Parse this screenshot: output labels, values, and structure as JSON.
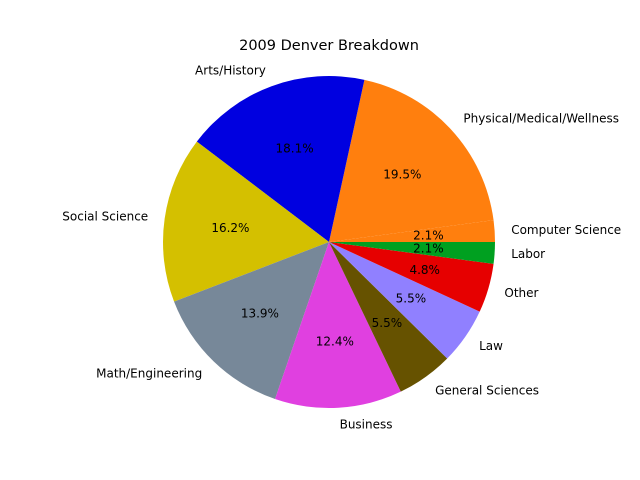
{
  "chart_data": {
    "type": "pie",
    "title": "2009 Denver Breakdown",
    "slices": [
      {
        "label": "Computer Science",
        "value": 2.1,
        "pct_label": "2.1%",
        "color": "#ff7f0e"
      },
      {
        "label": "Physical/Medical/Wellness",
        "value": 19.5,
        "pct_label": "19.5%",
        "color": "#ff7f0e"
      },
      {
        "label": "Arts/History",
        "value": 18.1,
        "pct_label": "18.1%",
        "color": "#0000e0"
      },
      {
        "label": "Social Science",
        "value": 16.2,
        "pct_label": "16.2%",
        "color": "#d4c000"
      },
      {
        "label": "Math/Engineering",
        "value": 13.9,
        "pct_label": "13.9%",
        "color": "#778899"
      },
      {
        "label": "Business",
        "value": 12.4,
        "pct_label": "12.4%",
        "color": "#e040e0"
      },
      {
        "label": "General Sciences",
        "value": 5.5,
        "pct_label": "5.5%",
        "color": "#665200"
      },
      {
        "label": "Law",
        "value": 5.5,
        "pct_label": "5.5%",
        "color": "#9080ff"
      },
      {
        "label": "Other",
        "value": 4.8,
        "pct_label": "4.8%",
        "color": "#e60000"
      },
      {
        "label": "Labor",
        "value": 2.1,
        "pct_label": "2.1%",
        "color": "#00a020"
      }
    ]
  }
}
